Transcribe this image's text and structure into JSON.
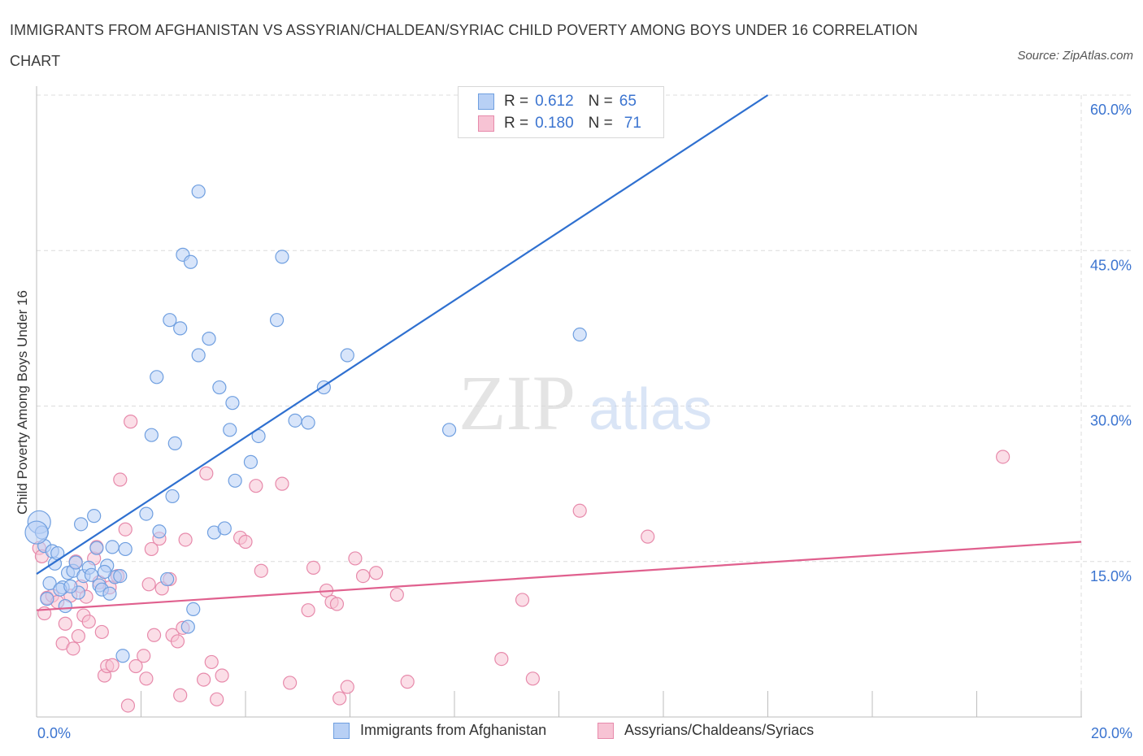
{
  "title": "IMMIGRANTS FROM AFGHANISTAN VS ASSYRIAN/CHALDEAN/SYRIAC CHILD POVERTY AMONG BOYS UNDER 16 CORRELATION CHART",
  "source": "Source: ZipAtlas.com",
  "watermark": {
    "zip": "ZIP",
    "atlas": "atlas"
  },
  "colors": {
    "blue_fill": "#b8d0f5",
    "blue_stroke": "#6f9fe0",
    "blue_line": "#2f70d0",
    "pink_fill": "#f7c3d4",
    "pink_stroke": "#e78aab",
    "pink_line": "#e0608e",
    "tick_label": "#3b74d0",
    "grid": "#dcdcdc"
  },
  "legend": {
    "rows": [
      {
        "r_label": "R =",
        "r_value": "0.612",
        "n_label": "N =",
        "n_value": "65",
        "series": "blue"
      },
      {
        "r_label": "R =",
        "r_value": "0.180",
        "n_label": "N =",
        "n_value": "71",
        "series": "pink"
      }
    ]
  },
  "bottom_legend": [
    {
      "label": "Immigrants from Afghanistan",
      "series": "blue"
    },
    {
      "label": "Assyrians/Chaldeans/Syriacs",
      "series": "pink"
    }
  ],
  "chart_data": {
    "type": "scatter",
    "title": "IMMIGRANTS FROM AFGHANISTAN VS ASSYRIAN/CHALDEAN/SYRIAC CHILD POVERTY AMONG BOYS UNDER 16 CORRELATION CHART",
    "xlabel": "",
    "ylabel": "Child Poverty Among Boys Under 16",
    "xlim": [
      0,
      20
    ],
    "ylim": [
      0,
      60
    ],
    "x_tick_labels": [
      {
        "value": 0,
        "label": "0.0%"
      },
      {
        "value": 20,
        "label": "20.0%"
      }
    ],
    "y_tick_labels": [
      {
        "value": 15,
        "label": "15.0%"
      },
      {
        "value": 30,
        "label": "30.0%"
      },
      {
        "value": 45,
        "label": "45.0%"
      },
      {
        "value": 60,
        "label": "60.0%"
      }
    ],
    "grid": true,
    "legend_placement": "top-center",
    "series": [
      {
        "name": "Immigrants from Afghanistan",
        "color": "blue",
        "trend": {
          "x": [
            0,
            14
          ],
          "y": [
            13.8,
            60
          ]
        },
        "points": [
          [
            0.05,
            18.8
          ],
          [
            0.1,
            17.8
          ],
          [
            0.15,
            16.5
          ],
          [
            0.2,
            11.4
          ],
          [
            0.3,
            16.0
          ],
          [
            0.25,
            12.9
          ],
          [
            0.35,
            14.8
          ],
          [
            0.4,
            15.8
          ],
          [
            0.5,
            12.5
          ],
          [
            0.55,
            10.7
          ],
          [
            0.6,
            13.9
          ],
          [
            0.7,
            14.1
          ],
          [
            0.75,
            14.9
          ],
          [
            0.8,
            12.0
          ],
          [
            0.85,
            18.6
          ],
          [
            0.9,
            13.6
          ],
          [
            1.0,
            14.4
          ],
          [
            1.05,
            13.7
          ],
          [
            1.1,
            19.4
          ],
          [
            1.15,
            16.3
          ],
          [
            1.2,
            12.7
          ],
          [
            1.25,
            12.3
          ],
          [
            1.35,
            14.6
          ],
          [
            1.4,
            11.9
          ],
          [
            1.45,
            16.4
          ],
          [
            1.5,
            13.5
          ],
          [
            1.6,
            13.6
          ],
          [
            1.65,
            5.9
          ],
          [
            1.7,
            16.2
          ],
          [
            2.1,
            19.6
          ],
          [
            2.2,
            27.2
          ],
          [
            2.3,
            32.8
          ],
          [
            2.35,
            17.9
          ],
          [
            2.5,
            13.3
          ],
          [
            2.55,
            38.3
          ],
          [
            2.6,
            21.3
          ],
          [
            2.65,
            26.4
          ],
          [
            2.75,
            37.5
          ],
          [
            2.8,
            44.6
          ],
          [
            2.9,
            8.7
          ],
          [
            2.95,
            43.9
          ],
          [
            3.0,
            10.4
          ],
          [
            3.1,
            34.9
          ],
          [
            3.1,
            50.7
          ],
          [
            3.3,
            36.5
          ],
          [
            3.4,
            17.8
          ],
          [
            3.5,
            31.8
          ],
          [
            3.6,
            18.2
          ],
          [
            3.7,
            27.7
          ],
          [
            3.75,
            30.3
          ],
          [
            3.8,
            22.8
          ],
          [
            4.1,
            24.6
          ],
          [
            4.25,
            27.1
          ],
          [
            4.6,
            38.3
          ],
          [
            4.7,
            44.4
          ],
          [
            4.95,
            28.6
          ],
          [
            5.2,
            28.4
          ],
          [
            5.5,
            31.8
          ],
          [
            5.95,
            34.9
          ],
          [
            7.9,
            27.7
          ],
          [
            10.4,
            36.9
          ],
          [
            0.0,
            17.8
          ],
          [
            0.45,
            12.3
          ],
          [
            0.65,
            12.6
          ],
          [
            1.3,
            14.0
          ]
        ]
      },
      {
        "name": "Assyrians/Chaldeans/Syriacs",
        "color": "pink",
        "trend": {
          "x": [
            0,
            20
          ],
          "y": [
            10.3,
            16.9
          ]
        },
        "points": [
          [
            0.05,
            16.3
          ],
          [
            0.1,
            15.5
          ],
          [
            0.15,
            10.0
          ],
          [
            0.2,
            11.5
          ],
          [
            0.3,
            11.7
          ],
          [
            0.4,
            11.1
          ],
          [
            0.5,
            7.1
          ],
          [
            0.55,
            9.0
          ],
          [
            0.65,
            11.7
          ],
          [
            0.7,
            6.6
          ],
          [
            0.75,
            15.0
          ],
          [
            0.8,
            7.8
          ],
          [
            0.85,
            12.6
          ],
          [
            0.9,
            9.8
          ],
          [
            0.95,
            11.6
          ],
          [
            1.0,
            9.2
          ],
          [
            1.1,
            15.3
          ],
          [
            1.15,
            16.4
          ],
          [
            1.2,
            13.0
          ],
          [
            1.25,
            8.2
          ],
          [
            1.3,
            4.0
          ],
          [
            1.35,
            4.9
          ],
          [
            1.4,
            12.5
          ],
          [
            1.45,
            5.0
          ],
          [
            1.55,
            13.6
          ],
          [
            1.6,
            22.9
          ],
          [
            1.7,
            18.1
          ],
          [
            1.75,
            1.1
          ],
          [
            1.8,
            28.5
          ],
          [
            1.9,
            4.9
          ],
          [
            2.05,
            5.9
          ],
          [
            2.1,
            3.7
          ],
          [
            2.15,
            12.8
          ],
          [
            2.2,
            16.2
          ],
          [
            2.25,
            7.9
          ],
          [
            2.35,
            17.2
          ],
          [
            2.4,
            12.4
          ],
          [
            2.55,
            13.3
          ],
          [
            2.6,
            7.9
          ],
          [
            2.7,
            7.3
          ],
          [
            2.75,
            2.1
          ],
          [
            2.8,
            8.6
          ],
          [
            2.85,
            17.1
          ],
          [
            3.2,
            3.6
          ],
          [
            3.25,
            23.5
          ],
          [
            3.35,
            5.3
          ],
          [
            3.45,
            1.7
          ],
          [
            3.55,
            4.0
          ],
          [
            3.9,
            17.3
          ],
          [
            4.0,
            16.9
          ],
          [
            4.2,
            22.3
          ],
          [
            4.3,
            14.1
          ],
          [
            4.7,
            22.5
          ],
          [
            4.85,
            3.3
          ],
          [
            5.2,
            10.3
          ],
          [
            5.3,
            14.4
          ],
          [
            5.55,
            12.2
          ],
          [
            5.65,
            11.1
          ],
          [
            5.75,
            10.9
          ],
          [
            5.8,
            1.8
          ],
          [
            5.95,
            2.9
          ],
          [
            6.1,
            15.3
          ],
          [
            6.25,
            13.6
          ],
          [
            6.5,
            13.9
          ],
          [
            6.9,
            11.8
          ],
          [
            7.1,
            3.4
          ],
          [
            8.9,
            5.6
          ],
          [
            9.3,
            11.3
          ],
          [
            9.5,
            3.7
          ],
          [
            10.4,
            19.9
          ],
          [
            11.7,
            17.4
          ],
          [
            18.5,
            25.1
          ]
        ]
      }
    ]
  }
}
